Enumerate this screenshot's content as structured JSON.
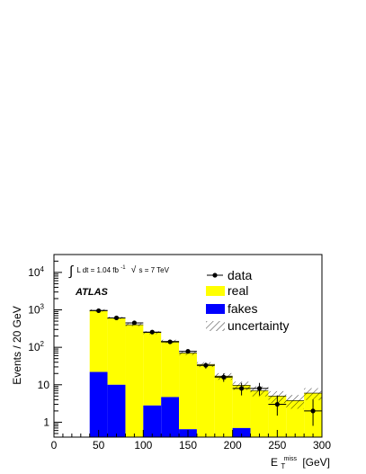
{
  "chart_data": {
    "type": "bar",
    "subtype": "stacked histogram with data points (log y scale)",
    "xlabel": "E",
    "xlabel_sub": "T",
    "xlabel_sup": "miss",
    "xlabel_unit": "[GeV]",
    "ylabel": "Events / 20 GeV",
    "xlim": [
      0,
      300
    ],
    "ylim": [
      0.4,
      30000
    ],
    "yscale": "log",
    "x_ticks": [
      "0",
      "50",
      "100",
      "150",
      "200",
      "250",
      "300"
    ],
    "y_ticks": [
      {
        "label": "1",
        "value": 1
      },
      {
        "label": "10",
        "value": 10
      },
      {
        "label": "10",
        "exp": "2",
        "value": 100
      },
      {
        "label": "10",
        "exp": "3",
        "value": 1000
      },
      {
        "label": "10",
        "exp": "4",
        "value": 10000
      }
    ],
    "bins": [
      {
        "lo": 40,
        "hi": 60,
        "real": 950,
        "fakes": 22,
        "unc": 0.07
      },
      {
        "lo": 60,
        "hi": 80,
        "real": 600,
        "fakes": 10,
        "unc": 0.07
      },
      {
        "lo": 80,
        "hi": 100,
        "real": 400,
        "fakes": 0,
        "unc": 0.08
      },
      {
        "lo": 100,
        "hi": 120,
        "real": 245,
        "fakes": 2.8,
        "unc": 0.09
      },
      {
        "lo": 120,
        "hi": 140,
        "real": 140,
        "fakes": 4.7,
        "unc": 0.1
      },
      {
        "lo": 140,
        "hi": 160,
        "real": 70,
        "fakes": 0.65,
        "unc": 0.12
      },
      {
        "lo": 160,
        "hi": 180,
        "real": 35,
        "fakes": 0,
        "unc": 0.15
      },
      {
        "lo": 180,
        "hi": 200,
        "real": 17,
        "fakes": 0,
        "unc": 0.2
      },
      {
        "lo": 200,
        "hi": 220,
        "real": 9,
        "fakes": 0.7,
        "unc": 0.25
      },
      {
        "lo": 220,
        "hi": 240,
        "real": 7,
        "fakes": 0,
        "unc": 0.3
      },
      {
        "lo": 240,
        "hi": 260,
        "real": 5,
        "fakes": 0,
        "unc": 0.35
      },
      {
        "lo": 260,
        "hi": 280,
        "real": 3.8,
        "fakes": 0,
        "unc": 0.4
      },
      {
        "lo": 280,
        "hi": 300,
        "real": 6,
        "fakes": 0,
        "unc": 0.35
      }
    ],
    "data_points": [
      {
        "x": 50,
        "y": 950,
        "ylo": 900,
        "yhi": 1000
      },
      {
        "x": 70,
        "y": 610,
        "ylo": 580,
        "yhi": 640
      },
      {
        "x": 90,
        "y": 450,
        "ylo": 425,
        "yhi": 475
      },
      {
        "x": 110,
        "y": 255,
        "ylo": 240,
        "yhi": 271
      },
      {
        "x": 130,
        "y": 140,
        "ylo": 128,
        "yhi": 152
      },
      {
        "x": 150,
        "y": 78,
        "ylo": 69,
        "yhi": 87
      },
      {
        "x": 170,
        "y": 33,
        "ylo": 27,
        "yhi": 39
      },
      {
        "x": 190,
        "y": 16,
        "ylo": 12,
        "yhi": 20
      },
      {
        "x": 210,
        "y": 8,
        "ylo": 5.2,
        "yhi": 11.2
      },
      {
        "x": 230,
        "y": 8,
        "ylo": 5.2,
        "yhi": 11.2
      },
      {
        "x": 250,
        "y": 3,
        "ylo": 1.5,
        "yhi": 5.2
      },
      {
        "x": 290,
        "y": 2,
        "ylo": 0.8,
        "yhi": 4
      }
    ],
    "legend": {
      "placement": "top-right",
      "entries": [
        {
          "label": "data",
          "style": "marker"
        },
        {
          "label": "real",
          "style": "fill",
          "color": "#ffff00"
        },
        {
          "label": "fakes",
          "style": "fill",
          "color": "#0000ff"
        },
        {
          "label": "uncertainty",
          "style": "hatch"
        }
      ]
    },
    "annotations": {
      "lumi_integral": "∫",
      "lumi_text": "L dt = 1.04 fb",
      "lumi_exp": "-1",
      "energy_text": "s = 7 TeV",
      "sqrt_symbol": "√",
      "experiment": "ATLAS"
    },
    "colors": {
      "real": "#ffff00",
      "fakes": "#0000ff",
      "data": "#000000"
    }
  }
}
